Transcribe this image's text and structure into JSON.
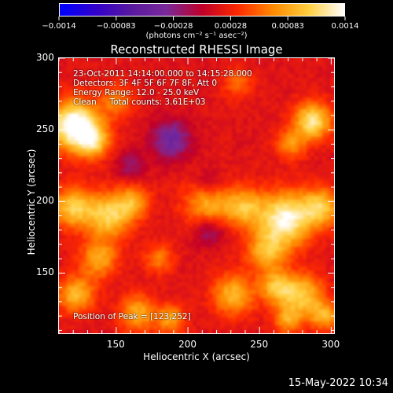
{
  "colorbar": {
    "tick_labels": [
      "−0.0014",
      "−0.00083",
      "−0.00028",
      "0.00028",
      "0.00083",
      "0.0014"
    ],
    "units": "(photons cm⁻² s⁻¹ asec⁻²)",
    "colors": [
      "#0000ff",
      "#3300cc",
      "#5a1aa0",
      "#7a2a9a",
      "#c0002a",
      "#ff2a00",
      "#ff8a00",
      "#ffd040",
      "#ffffff"
    ]
  },
  "chart_data": {
    "type": "heatmap",
    "title": "Reconstructed RHESSI Image",
    "xlabel": "Heliocentric X (arcsec)",
    "ylabel": "Heliocentric Y (arcsec)",
    "xlim": [
      110,
      302
    ],
    "ylim": [
      108,
      300
    ],
    "xticks": [
      150,
      200,
      250,
      300
    ],
    "yticks": [
      150,
      200,
      250,
      300
    ],
    "color_range": [
      -0.0014,
      0.0014
    ],
    "peak": [
      123,
      252
    ],
    "blobs": [
      {
        "x": 121,
        "y": 253,
        "r": 12,
        "v": 1.0
      },
      {
        "x": 134,
        "y": 242,
        "r": 8,
        "v": 0.55
      },
      {
        "x": 120,
        "y": 196,
        "r": 10,
        "v": 0.62
      },
      {
        "x": 145,
        "y": 190,
        "r": 11,
        "v": 0.65
      },
      {
        "x": 162,
        "y": 200,
        "r": 8,
        "v": 0.45
      },
      {
        "x": 215,
        "y": 198,
        "r": 12,
        "v": 0.55
      },
      {
        "x": 240,
        "y": 196,
        "r": 9,
        "v": 0.5
      },
      {
        "x": 268,
        "y": 188,
        "r": 13,
        "v": 0.85
      },
      {
        "x": 293,
        "y": 196,
        "r": 9,
        "v": 0.6
      },
      {
        "x": 287,
        "y": 256,
        "r": 9,
        "v": 0.75
      },
      {
        "x": 272,
        "y": 240,
        "r": 7,
        "v": 0.4
      },
      {
        "x": 255,
        "y": 165,
        "r": 10,
        "v": 0.5
      },
      {
        "x": 138,
        "y": 160,
        "r": 9,
        "v": 0.5
      },
      {
        "x": 180,
        "y": 160,
        "r": 7,
        "v": 0.35
      },
      {
        "x": 122,
        "y": 135,
        "r": 9,
        "v": 0.55
      },
      {
        "x": 165,
        "y": 122,
        "r": 9,
        "v": 0.5
      },
      {
        "x": 232,
        "y": 135,
        "r": 10,
        "v": 0.55
      },
      {
        "x": 262,
        "y": 140,
        "r": 8,
        "v": 0.55
      },
      {
        "x": 280,
        "y": 135,
        "r": 10,
        "v": 0.6
      },
      {
        "x": 295,
        "y": 120,
        "r": 7,
        "v": 0.5
      },
      {
        "x": 270,
        "y": 118,
        "r": 7,
        "v": 0.45
      },
      {
        "x": 188,
        "y": 118,
        "r": 7,
        "v": 0.45
      },
      {
        "x": 150,
        "y": 270,
        "r": 8,
        "v": 0.35
      },
      {
        "x": 235,
        "y": 282,
        "r": 7,
        "v": 0.3
      },
      {
        "x": 188,
        "y": 243,
        "r": 10,
        "v": -0.45
      },
      {
        "x": 215,
        "y": 180,
        "r": 8,
        "v": -0.35
      },
      {
        "x": 215,
        "y": 212,
        "r": 7,
        "v": -0.3
      },
      {
        "x": 160,
        "y": 225,
        "r": 7,
        "v": -0.25
      }
    ]
  },
  "info": {
    "time_range": "23-Oct-2011 14:14:00.000 to 14:15:28.000",
    "detectors": "Detectors: 3F 4F 5F 6F 7F 8F, Att 0",
    "energy": "Energy Range: 12.0 - 25.0 keV",
    "clean": "Clean     Total counts: 3.61E+03",
    "peak": "Position of Peak = [123,252]"
  },
  "timestamp": "15-May-2022 10:34"
}
